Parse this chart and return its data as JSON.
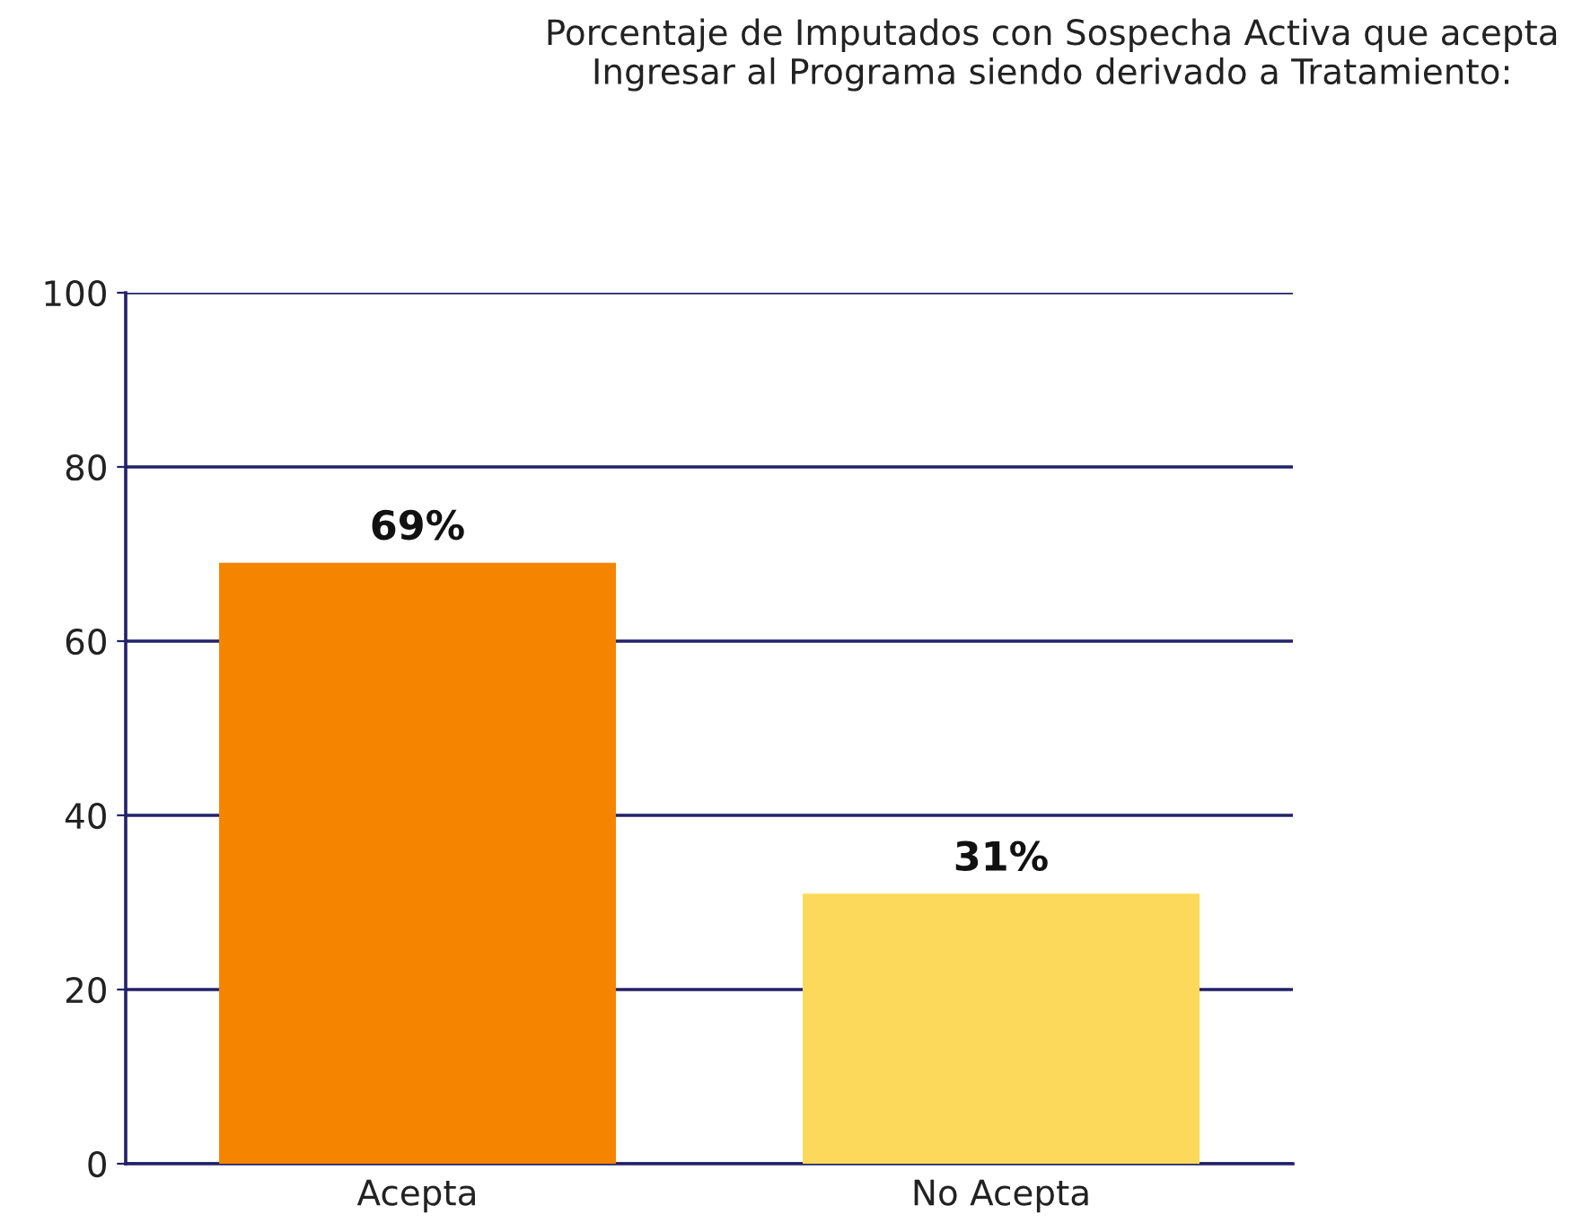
{
  "chart_data": {
    "type": "bar",
    "title": "Porcentaje de Imputados con Sospecha Activa que acepta\nIngresar al Programa siendo derivado a Tratamiento:",
    "categories": [
      "Acepta",
      "No Acepta"
    ],
    "values": [
      69,
      31
    ],
    "colors": [
      "#f58400",
      "#fcd95a"
    ],
    "value_labels": [
      "69%",
      "31%"
    ],
    "ylim": [
      0,
      100
    ],
    "yticks": [
      0,
      20,
      40,
      60,
      80,
      100
    ],
    "grid": "y"
  }
}
